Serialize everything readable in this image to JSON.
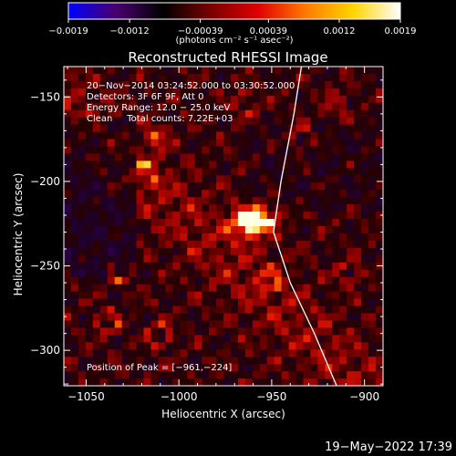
{
  "chart_data": {
    "type": "heatmap",
    "title": "Reconstructed RHESSI Image",
    "xlabel": "Heliocentric X (arcsec)",
    "ylabel": "Heliocentric Y (arcsec)",
    "xlim": [
      -1062,
      -890
    ],
    "ylim": [
      -321,
      -132
    ],
    "x_ticks": [
      {
        "value": -1050,
        "label": "−1050"
      },
      {
        "value": -1000,
        "label": "−1000"
      },
      {
        "value": -950,
        "label": "−950"
      },
      {
        "value": -900,
        "label": "−900"
      }
    ],
    "y_ticks": [
      {
        "value": -150,
        "label": "−150"
      },
      {
        "value": -200,
        "label": "−200"
      },
      {
        "value": -250,
        "label": "−250"
      },
      {
        "value": -300,
        "label": "−300"
      }
    ],
    "annotations": [
      "20−Nov−2014 03:24:52.000 to 03:30:52.000",
      "Detectors: 3F 6F 9F, Att 0",
      "Energy Range: 12.0 − 25.0 keV",
      "Clean     Total counts: 7.22E+03"
    ],
    "peak_label": "Position of Peak = [−961,−224]",
    "peak": {
      "x": -961,
      "y": -224
    },
    "colorbar": {
      "range": [
        -0.0019,
        0.0019
      ],
      "ticks": [
        {
          "value": -0.0019,
          "label": "−0.0019"
        },
        {
          "value": -0.0012,
          "label": "−0.0012"
        },
        {
          "value": -0.00039,
          "label": "−0.00039"
        },
        {
          "value": 0.00039,
          "label": "0.00039"
        },
        {
          "value": 0.0012,
          "label": "0.0012"
        },
        {
          "value": 0.0019,
          "label": "0.0019"
        }
      ],
      "unit_label": "(photons cm⁻² s⁻¹ asec⁻²)",
      "colors": [
        "#0000ff",
        "#4a006e",
        "#000000",
        "#7a0000",
        "#e00000",
        "#ff7a00",
        "#ffd400",
        "#ffffff"
      ]
    },
    "limb_curve": [
      [
        -934,
        -132
      ],
      [
        -938,
        -160
      ],
      [
        -945,
        -200
      ],
      [
        -949,
        -230
      ],
      [
        -940,
        -260
      ],
      [
        -927,
        -290
      ],
      [
        -915,
        -321
      ]
    ],
    "grid": false
  },
  "footer": {
    "timestamp": "19−May−2022 17:39"
  }
}
